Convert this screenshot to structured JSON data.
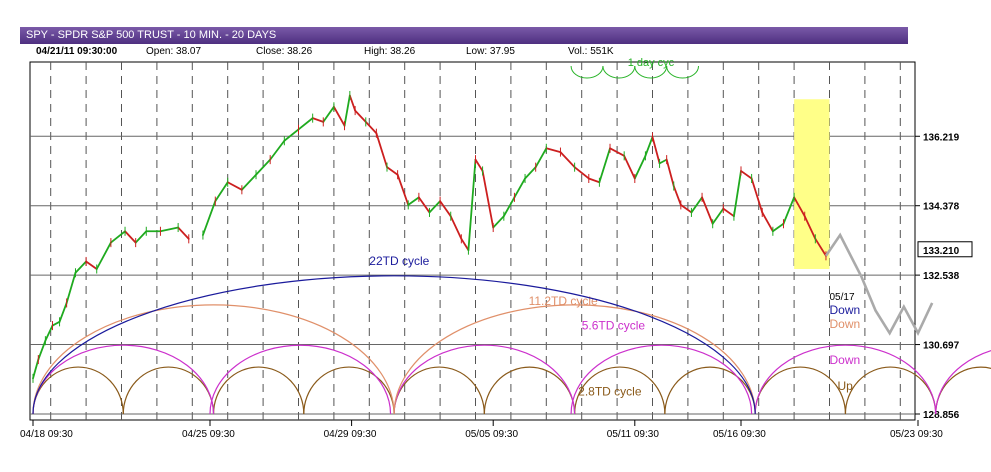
{
  "header": {
    "title": "SPY - SPDR S&P 500 TRUST - 10 MIN. - 20 DAYS",
    "datetime": "04/21/11 09:30:00",
    "open": "Open: 38.07",
    "close": "Close: 38.26",
    "high": "High: 38.26",
    "low": "Low: 37.95",
    "vol": "Vol.: 551K"
  },
  "colors": {
    "up": "#1faa1f",
    "down": "#cc1f1f",
    "c22": "#1b1b9c",
    "c11": "#e0906a",
    "c56": "#cc30cc",
    "c28": "#8a5a1a",
    "c1": "#27b327",
    "projection": "#aaaaaa",
    "highlight": "#ffff88"
  },
  "chart_data": {
    "type": "line",
    "title": "SPY - SPDR S&P 500 TRUST - 10 MIN. - 20 DAYS",
    "ylim": [
      128.856,
      138.0
    ],
    "y_ticks": [
      "136.219",
      "134.378",
      "132.538",
      "130.697",
      "128.856"
    ],
    "last_price": "133.210",
    "x_ticks": [
      "04/18 09:30",
      "04/25 09:30",
      "04/29 09:30",
      "05/05 09:30",
      "05/11 09:30",
      "05/16 09:30",
      "05/23 09:30"
    ],
    "x_tick_days": [
      0,
      5,
      9,
      13,
      17,
      20,
      25
    ],
    "day_range": [
      0,
      25
    ],
    "price_series": {
      "name": "",
      "points": [
        [
          0.0,
          129.8
        ],
        [
          0.15,
          130.3
        ],
        [
          0.35,
          130.8
        ],
        [
          0.55,
          131.2
        ],
        [
          0.75,
          131.3
        ],
        [
          0.95,
          131.8
        ],
        [
          1.2,
          132.6
        ],
        [
          1.5,
          132.9
        ],
        [
          1.8,
          132.7
        ],
        [
          2.2,
          133.4
        ],
        [
          2.6,
          133.7
        ],
        [
          2.9,
          133.4
        ],
        [
          3.2,
          133.7
        ],
        [
          3.6,
          133.7
        ],
        [
          4.1,
          133.8
        ],
        [
          4.4,
          133.5
        ],
        [
          4.8,
          133.6
        ],
        [
          5.15,
          134.5
        ],
        [
          5.5,
          135.0
        ],
        [
          5.9,
          134.8
        ],
        [
          6.3,
          135.2
        ],
        [
          6.7,
          135.6
        ],
        [
          7.1,
          136.1
        ],
        [
          7.5,
          136.4
        ],
        [
          7.9,
          136.7
        ],
        [
          8.2,
          136.6
        ],
        [
          8.5,
          137.0
        ],
        [
          8.8,
          136.5
        ],
        [
          8.95,
          137.3
        ],
        [
          9.1,
          136.9
        ],
        [
          9.4,
          136.6
        ],
        [
          9.7,
          136.3
        ],
        [
          10.0,
          135.4
        ],
        [
          10.3,
          135.2
        ],
        [
          10.6,
          134.4
        ],
        [
          10.9,
          134.6
        ],
        [
          11.2,
          134.2
        ],
        [
          11.5,
          134.5
        ],
        [
          11.8,
          134.1
        ],
        [
          12.1,
          133.5
        ],
        [
          12.3,
          133.2
        ],
        [
          12.5,
          135.6
        ],
        [
          12.7,
          135.3
        ],
        [
          13.0,
          133.8
        ],
        [
          13.3,
          134.1
        ],
        [
          13.6,
          134.6
        ],
        [
          13.9,
          135.1
        ],
        [
          14.2,
          135.4
        ],
        [
          14.5,
          135.9
        ],
        [
          14.9,
          135.8
        ],
        [
          15.3,
          135.4
        ],
        [
          15.7,
          135.1
        ],
        [
          16.0,
          135.0
        ],
        [
          16.3,
          135.9
        ],
        [
          16.7,
          135.7
        ],
        [
          17.0,
          135.1
        ],
        [
          17.3,
          135.7
        ],
        [
          17.5,
          136.2
        ],
        [
          17.7,
          135.5
        ],
        [
          17.9,
          135.6
        ],
        [
          18.1,
          134.9
        ],
        [
          18.3,
          134.4
        ],
        [
          18.6,
          134.2
        ],
        [
          18.9,
          134.6
        ],
        [
          19.2,
          133.9
        ],
        [
          19.5,
          134.3
        ],
        [
          19.8,
          134.1
        ],
        [
          20.0,
          135.3
        ],
        [
          20.3,
          135.1
        ],
        [
          20.6,
          134.2
        ],
        [
          20.9,
          133.7
        ],
        [
          21.2,
          133.9
        ],
        [
          21.5,
          134.6
        ],
        [
          21.8,
          134.1
        ],
        [
          22.1,
          133.5
        ],
        [
          22.4,
          133.05
        ]
      ]
    },
    "projection_series": {
      "name": "",
      "points": [
        [
          22.4,
          133.05
        ],
        [
          22.8,
          133.6
        ],
        [
          23.4,
          132.5
        ],
        [
          23.8,
          131.6
        ],
        [
          24.2,
          131.0
        ],
        [
          24.6,
          131.7
        ],
        [
          25.0,
          131.0
        ],
        [
          25.4,
          131.8
        ]
      ]
    },
    "cycles": [
      {
        "label": "22TD cycle",
        "starts": [
          0.0
        ],
        "period": 20.4,
        "peak": 132.52,
        "color": "c22",
        "label_day": 9.5,
        "label_y": 132.8
      },
      {
        "label": "11.2TD cycle",
        "starts": [
          0.0,
          10.2
        ],
        "period": 10.2,
        "peak": 131.75,
        "color": "c11",
        "label_day": 14.0,
        "label_y": 131.75
      },
      {
        "label": "5.6TD cycle",
        "starts": [
          0.0,
          5.0,
          10.2,
          15.2,
          20.4,
          25.5
        ],
        "period": 5.1,
        "peak": 130.68,
        "color": "c56",
        "label_day": 15.5,
        "label_y": 131.1
      },
      {
        "label": "2.8TD cycle",
        "starts": [
          0.0,
          2.55,
          5.1,
          7.65,
          10.2,
          12.75,
          15.3,
          17.85,
          20.4,
          22.95,
          25.5
        ],
        "period": 2.55,
        "peak": 130.1,
        "color": "c28",
        "label_day": 15.4,
        "label_y": 129.35
      }
    ],
    "day_cycle_label": "1 day cyc",
    "highlight_days": [
      21.5,
      22.5
    ],
    "annotations": {
      "date": "05/17",
      "c22_dir": "Down",
      "c11_dir": "Down",
      "c56_dir": "Down",
      "c28_dir": "Up"
    }
  }
}
